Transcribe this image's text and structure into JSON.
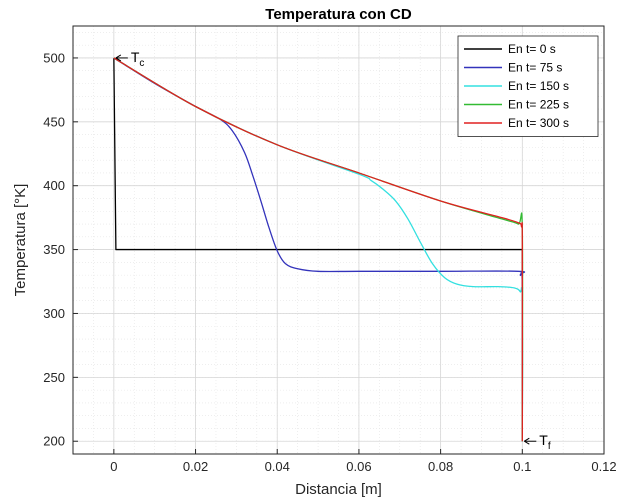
{
  "chart_data": {
    "type": "line",
    "title": "Temperatura con CD",
    "xlabel": "Distancia [m]",
    "ylabel": "Temperatura [°K]",
    "xlim": [
      -0.01,
      0.12
    ],
    "ylim": [
      190,
      525
    ],
    "xticks": [
      0,
      0.02,
      0.04,
      0.06,
      0.08,
      0.1,
      0.12
    ],
    "xtick_labels": [
      "0",
      "0.02",
      "0.04",
      "0.06",
      "0.08",
      "0.1",
      "0.12"
    ],
    "yticks": [
      200,
      250,
      300,
      350,
      400,
      450,
      500
    ],
    "ytick_labels": [
      "200",
      "250",
      "300",
      "350",
      "400",
      "450",
      "500"
    ],
    "grid": true,
    "minor_grid": true,
    "legend_position": "top-right",
    "series": [
      {
        "name": "En t= 0 s",
        "color": "#000000",
        "x": [
          0,
          0,
          0.0005,
          0.05,
          0.0995,
          0.1,
          0.1
        ],
        "y": [
          500,
          500,
          350,
          350,
          350,
          350,
          200
        ]
      },
      {
        "name": "En t= 75 s",
        "color": "#3333bb",
        "x": [
          0,
          0.01,
          0.02,
          0.026,
          0.029,
          0.032,
          0.034,
          0.036,
          0.038,
          0.04,
          0.042,
          0.045,
          0.05,
          0.06,
          0.08,
          0.099,
          0.0995,
          0.1,
          0.1
        ],
        "y": [
          500,
          480,
          462,
          452,
          443,
          426,
          408,
          388,
          367,
          349,
          339,
          335,
          333,
          333,
          333,
          333,
          330,
          320,
          200
        ]
      },
      {
        "name": "En t= 150 s",
        "color": "#33e0e0",
        "x": [
          0,
          0.02,
          0.04,
          0.06,
          0.063,
          0.066,
          0.069,
          0.072,
          0.075,
          0.078,
          0.081,
          0.084,
          0.088,
          0.094,
          0.098,
          0.0995,
          0.1,
          0.1
        ],
        "y": [
          500,
          462,
          432,
          409,
          404,
          397,
          388,
          374,
          356,
          339,
          328,
          323,
          321,
          321,
          320,
          317,
          310,
          200
        ]
      },
      {
        "name": "En t= 225 s",
        "color": "#33bb33",
        "x": [
          0,
          0.02,
          0.04,
          0.06,
          0.08,
          0.095,
          0.099,
          0.1,
          0.1
        ],
        "y": [
          500,
          462,
          432,
          410,
          388,
          374,
          370,
          365,
          200
        ]
      },
      {
        "name": "En t= 300 s",
        "color": "#e02020",
        "x": [
          0,
          0.02,
          0.04,
          0.06,
          0.08,
          0.095,
          0.099,
          0.0998,
          0.1,
          0.1
        ],
        "y": [
          500,
          462,
          432,
          410,
          388,
          375,
          371,
          368,
          355,
          200
        ]
      }
    ],
    "annotations": [
      {
        "text": "T",
        "sub": "c",
        "x": 0,
        "y": 500
      },
      {
        "text": "T",
        "sub": "f",
        "x": 0.1,
        "y": 200
      }
    ]
  }
}
